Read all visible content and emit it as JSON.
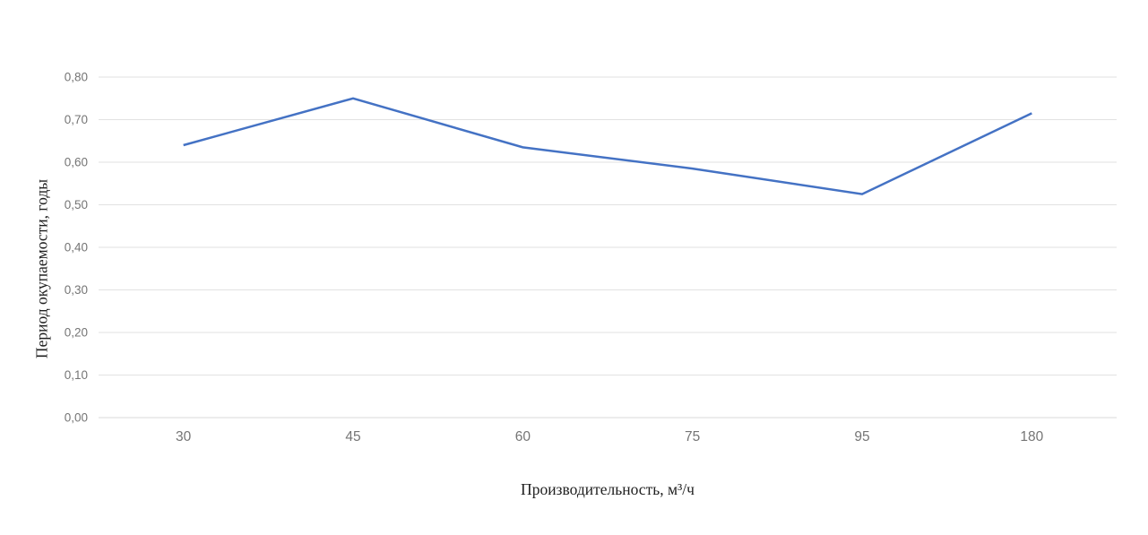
{
  "chart_data": {
    "type": "line",
    "title": "",
    "xlabel": "Производительность, м³/ч",
    "ylabel": "Период окупаемости, годы",
    "categories": [
      "30",
      "45",
      "60",
      "75",
      "95",
      "180"
    ],
    "values": [
      0.64,
      0.75,
      0.635,
      0.585,
      0.525,
      0.715
    ],
    "ylim": [
      0,
      0.8
    ],
    "ytick_step": 0.1,
    "ytick_labels": [
      "0,00",
      "0,10",
      "0,20",
      "0,30",
      "0,40",
      "0,50",
      "0,60",
      "0,70",
      "0,80"
    ],
    "grid": true,
    "legend_position": "none",
    "markers": false,
    "colors": {
      "line": "#4472c4",
      "grid": "#e2e2e2",
      "baseline": "#d8d8d8",
      "tick_label": "#757575",
      "axis_title": "#1f1f1f",
      "background": "#ffffff"
    }
  }
}
